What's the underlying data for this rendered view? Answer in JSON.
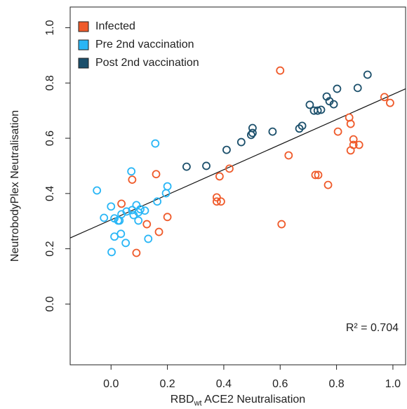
{
  "chart_data": {
    "type": "scatter",
    "xlabel": "RBD",
    "xlabel_sub": "wt",
    "xlabel_rest": " ACE2 Neutralisation",
    "ylabel": "NeutrobodyPlex Neutralisation",
    "annotation": "R² = 0.704",
    "xlim": [
      -0.145,
      1.045
    ],
    "ylim": [
      -0.22,
      1.075
    ],
    "xticks": [
      {
        "value": 0,
        "label": "0.0"
      },
      0.2,
      0.4,
      0.6,
      0.8,
      {
        "value": 1,
        "label": "1.0"
      }
    ],
    "yticks": [
      {
        "value": 0,
        "label": "0.0"
      },
      0.2,
      0.4,
      0.6,
      0.8,
      {
        "value": 1,
        "label": "1.0"
      }
    ],
    "legend": "top-left",
    "fit": {
      "color": "#111111",
      "x": [
        -0.145,
        1.045
      ],
      "y": [
        0.239,
        0.779
      ]
    },
    "series": [
      {
        "name": "Infected",
        "color": "#ef5a2a",
        "x": [
          0.6,
          0.97,
          0.99,
          0.845,
          0.85,
          0.805,
          0.86,
          0.86,
          0.88,
          0.85,
          0.42,
          0.63,
          0.725,
          0.735,
          0.77,
          0.16,
          0.075,
          0.385,
          0.375,
          0.375,
          0.39,
          0.037,
          0.127,
          0.2,
          0.17,
          0.09,
          0.605
        ],
        "values": [
          0.845,
          0.749,
          0.728,
          0.675,
          0.652,
          0.624,
          0.596,
          0.576,
          0.576,
          0.556,
          0.49,
          0.538,
          0.467,
          0.467,
          0.431,
          0.47,
          0.45,
          0.462,
          0.386,
          0.371,
          0.371,
          0.363,
          0.289,
          0.315,
          0.261,
          0.185,
          0.289
        ]
      },
      {
        "name": "Pre 2nd vaccination",
        "color": "#29b6f6",
        "x": [
          -0.05,
          0.157,
          0.072,
          0.2,
          0.195,
          0.164,
          0,
          -0.025,
          0.012,
          0.037,
          0.055,
          0.075,
          0.09,
          0.104,
          0.12,
          0.097,
          0.08,
          0.03,
          0.025,
          0.097,
          0.012,
          0.035,
          0.052,
          0.132,
          0.002
        ],
        "values": [
          0.411,
          0.581,
          0.48,
          0.426,
          0.401,
          0.371,
          0.353,
          0.312,
          0.31,
          0.325,
          0.335,
          0.34,
          0.358,
          0.343,
          0.338,
          0.332,
          0.322,
          0.302,
          0.302,
          0.302,
          0.244,
          0.254,
          0.221,
          0.236,
          0.188
        ]
      },
      {
        "name": "Post 2nd vaccination",
        "color": "#1b4f6b",
        "x": [
          0.91,
          0.802,
          0.875,
          0.765,
          0.775,
          0.79,
          0.705,
          0.72,
          0.733,
          0.745,
          0.678,
          0.668,
          0.573,
          0.502,
          0.502,
          0.497,
          0.462,
          0.41,
          0.338,
          0.268
        ],
        "values": [
          0.83,
          0.779,
          0.782,
          0.751,
          0.734,
          0.723,
          0.721,
          0.7,
          0.7,
          0.703,
          0.645,
          0.635,
          0.624,
          0.637,
          0.619,
          0.612,
          0.586,
          0.558,
          0.5,
          0.497
        ]
      }
    ]
  }
}
